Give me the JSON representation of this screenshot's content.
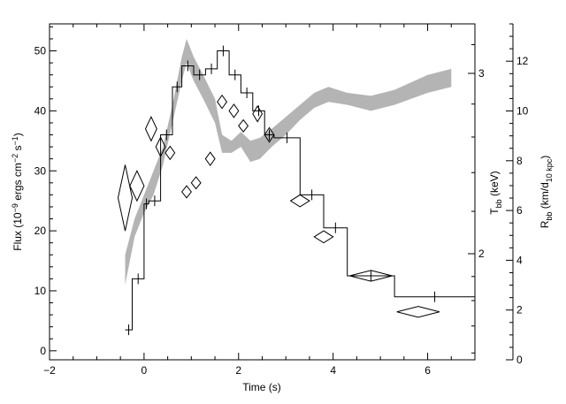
{
  "chart_data": {
    "type": "line",
    "x": {
      "label": "Time (s)",
      "range": [
        -2,
        7
      ],
      "ticks": [
        "-2",
        "0",
        "2",
        "4",
        "6"
      ]
    },
    "y_left": {
      "label": "Flux (10⁻⁹ ergs cm⁻² s⁻¹)",
      "range": [
        -1.5,
        54.5
      ],
      "ticks": [
        "0",
        "10",
        "20",
        "30",
        "40",
        "50"
      ]
    },
    "y_temperature": {
      "label": "T_bb (keV)",
      "scale": "log",
      "tick_labels": [
        "2",
        "3"
      ]
    },
    "y_radius": {
      "label": "R_bb (km/d_10 kpc)",
      "range": [
        0,
        13.5
      ],
      "ticks": [
        "0",
        "2",
        "4",
        "6",
        "8",
        "10",
        "12"
      ]
    },
    "series": [
      {
        "style": "histogram",
        "color": "#000000",
        "bins": [
          {
            "x0": -0.4,
            "x1": -0.25,
            "y": 3.5
          },
          {
            "x0": -0.25,
            "x1": 0.0,
            "y": 12
          },
          {
            "x0": 0.0,
            "x1": 0.1,
            "y": 24.5
          },
          {
            "x0": 0.1,
            "x1": 0.35,
            "y": 25
          },
          {
            "x0": 0.35,
            "x1": 0.6,
            "y": 36
          },
          {
            "x0": 0.6,
            "x1": 0.8,
            "y": 44
          },
          {
            "x0": 0.8,
            "x1": 1.05,
            "y": 47.5
          },
          {
            "x0": 1.05,
            "x1": 1.3,
            "y": 46
          },
          {
            "x0": 1.3,
            "x1": 1.55,
            "y": 47
          },
          {
            "x0": 1.55,
            "x1": 1.8,
            "y": 50
          },
          {
            "x0": 1.8,
            "x1": 2.05,
            "y": 46
          },
          {
            "x0": 2.05,
            "x1": 2.3,
            "y": 43
          },
          {
            "x0": 2.3,
            "x1": 2.55,
            "y": 40
          },
          {
            "x0": 2.55,
            "x1": 2.75,
            "y": 36
          },
          {
            "x0": 2.75,
            "x1": 3.3,
            "y": 35.5
          },
          {
            "x0": 3.3,
            "x1": 3.8,
            "y": 26
          },
          {
            "x0": 3.8,
            "x1": 4.3,
            "y": 20.5
          },
          {
            "x0": 4.3,
            "x1": 5.3,
            "y": 12.5
          },
          {
            "x0": 5.3,
            "x1": 7.0,
            "y": 9
          }
        ]
      },
      {
        "style": "band",
        "color": "#b4b4b4",
        "points": [
          {
            "x": -0.4,
            "low": 11,
            "high": 16
          },
          {
            "x": -0.2,
            "low": 19,
            "high": 22
          },
          {
            "x": 0.0,
            "low": 23,
            "high": 26
          },
          {
            "x": 0.2,
            "low": 26,
            "high": 30
          },
          {
            "x": 0.4,
            "low": 31,
            "high": 34
          },
          {
            "x": 0.6,
            "low": 38,
            "high": 41
          },
          {
            "x": 0.8,
            "low": 45,
            "high": 49
          },
          {
            "x": 0.9,
            "low": 48,
            "high": 52
          },
          {
            "x": 1.05,
            "low": 45,
            "high": 49
          },
          {
            "x": 1.25,
            "low": 42,
            "high": 46
          },
          {
            "x": 1.5,
            "low": 38,
            "high": 42
          },
          {
            "x": 1.65,
            "low": 33,
            "high": 36
          },
          {
            "x": 1.85,
            "low": 33,
            "high": 35
          },
          {
            "x": 2.05,
            "low": 34,
            "high": 36.5
          },
          {
            "x": 2.25,
            "low": 31.5,
            "high": 35
          },
          {
            "x": 2.45,
            "low": 32,
            "high": 35.5
          },
          {
            "x": 2.7,
            "low": 34,
            "high": 37
          },
          {
            "x": 3.0,
            "low": 36,
            "high": 39
          },
          {
            "x": 3.3,
            "low": 38.5,
            "high": 41
          },
          {
            "x": 3.6,
            "low": 40.5,
            "high": 43
          },
          {
            "x": 3.9,
            "low": 41.5,
            "high": 44
          },
          {
            "x": 4.3,
            "low": 41,
            "high": 43
          },
          {
            "x": 4.8,
            "low": 40,
            "high": 42.5
          },
          {
            "x": 5.3,
            "low": 41,
            "high": 43.5
          },
          {
            "x": 6.0,
            "low": 43,
            "high": 46
          },
          {
            "x": 6.5,
            "low": 44,
            "high": 47
          }
        ]
      },
      {
        "style": "diamonds",
        "color": "#000000",
        "points": [
          {
            "x": -0.4,
            "y": 25.5,
            "dx": 0.15,
            "dy": 5.5
          },
          {
            "x": -0.15,
            "y": 27.5,
            "dx": 0.15,
            "dy": 2.5
          },
          {
            "x": 0.15,
            "y": 37,
            "dx": 0.12,
            "dy": 2
          },
          {
            "x": 0.35,
            "y": 34,
            "dx": 0.1,
            "dy": 1.6
          },
          {
            "x": 0.55,
            "y": 33,
            "dx": 0.1,
            "dy": 1.1
          },
          {
            "x": 0.9,
            "y": 26.5,
            "dx": 0.1,
            "dy": 1.0
          },
          {
            "x": 1.1,
            "y": 28,
            "dx": 0.1,
            "dy": 1.0
          },
          {
            "x": 1.4,
            "y": 32,
            "dx": 0.1,
            "dy": 1.1
          },
          {
            "x": 1.65,
            "y": 41.5,
            "dx": 0.1,
            "dy": 1.1
          },
          {
            "x": 1.9,
            "y": 40,
            "dx": 0.1,
            "dy": 1.1
          },
          {
            "x": 2.1,
            "y": 37.5,
            "dx": 0.1,
            "dy": 1.0
          },
          {
            "x": 2.4,
            "y": 39.5,
            "dx": 0.1,
            "dy": 1.3
          },
          {
            "x": 2.65,
            "y": 36,
            "dx": 0.1,
            "dy": 1.2
          },
          {
            "x": 3.3,
            "y": 25,
            "dx": 0.2,
            "dy": 1.0
          },
          {
            "x": 3.8,
            "y": 19,
            "dx": 0.2,
            "dy": 1.0
          },
          {
            "x": 4.8,
            "y": 12.5,
            "dx": 0.45,
            "dy": 0.9
          },
          {
            "x": 5.8,
            "y": 6.5,
            "dx": 0.45,
            "dy": 0.9
          }
        ]
      }
    ]
  }
}
